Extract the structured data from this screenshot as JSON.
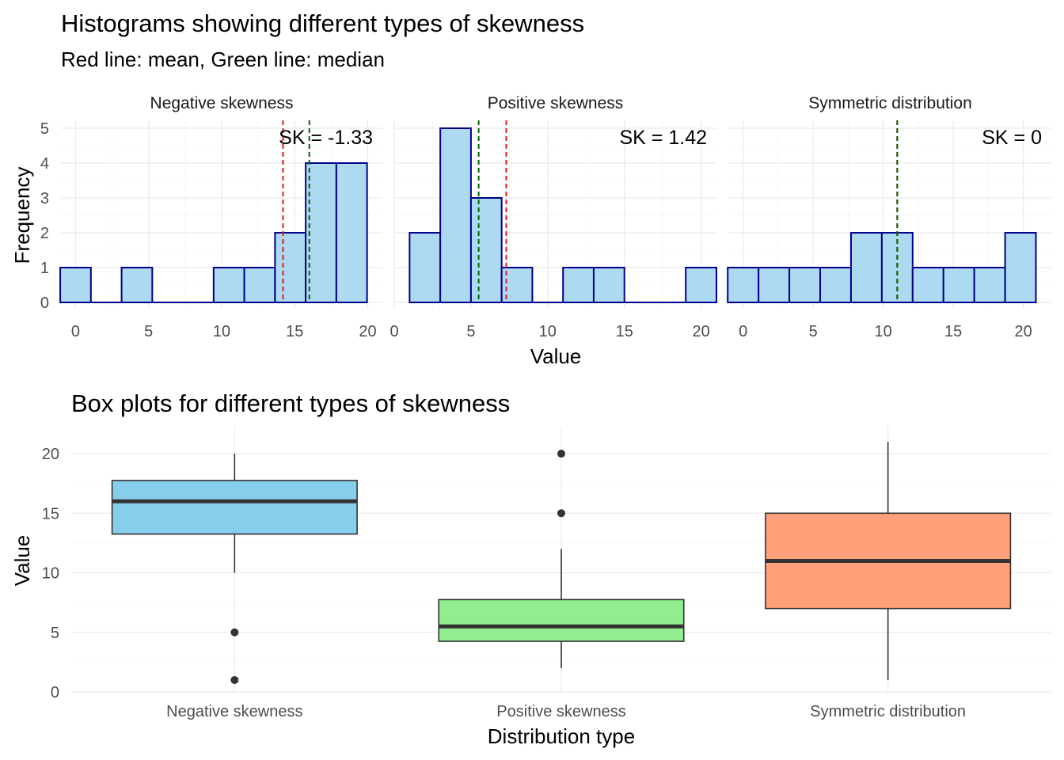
{
  "title": "Histograms showing different types of skewness",
  "subtitle": "Red line: mean, Green line: median",
  "chart_data": [
    {
      "type": "bar",
      "subtype": "histogram-facets",
      "xlabel": "Value",
      "ylabel": "Frequency",
      "ylim": [
        0,
        5
      ],
      "y_ticks": [
        0,
        1,
        2,
        3,
        4,
        5
      ],
      "bar_fill": "#ADDAF0",
      "bar_stroke": "#00008B",
      "mean_color": "#E41A1C",
      "median_color": "#006400",
      "grid": true,
      "panels": [
        {
          "strip": "Negative skewness",
          "annotation": "SK = -1.33",
          "xlim": [
            -1,
            21
          ],
          "x_ticks": [
            0,
            5,
            10,
            15,
            20
          ],
          "bin_start": -1.05,
          "bin_width": 2.1,
          "counts": [
            1,
            0,
            1,
            0,
            0,
            1,
            1,
            2,
            4,
            4
          ],
          "mean": 14.2,
          "median": 16
        },
        {
          "strip": "Positive skewness",
          "annotation": "SK = 1.42",
          "xlim": [
            0,
            21
          ],
          "x_ticks": [
            0,
            5,
            10,
            15,
            20
          ],
          "bin_start": 1,
          "bin_width": 2,
          "counts": [
            2,
            5,
            3,
            1,
            0,
            1,
            1,
            0,
            0,
            1
          ],
          "mean": 7.3,
          "median": 5.5
        },
        {
          "strip": "Symmetric distribution",
          "annotation": "SK = 0",
          "xlim": [
            -1,
            22
          ],
          "x_ticks": [
            0,
            5,
            10,
            15,
            20
          ],
          "bin_start": -1.1,
          "bin_width": 2.2,
          "counts": [
            1,
            1,
            1,
            1,
            2,
            2,
            1,
            1,
            1,
            2
          ],
          "mean": 11,
          "median": 11
        }
      ]
    },
    {
      "type": "box",
      "title": "Box plots for different types of skewness",
      "xlabel": "Distribution type",
      "ylabel": "Value",
      "ylim": [
        0,
        21
      ],
      "y_ticks": [
        0,
        5,
        10,
        15,
        20
      ],
      "grid": true,
      "categories": [
        "Negative skewness",
        "Positive skewness",
        "Symmetric distribution"
      ],
      "boxes": [
        {
          "fill": "#87CEEB",
          "q1": 13.25,
          "median": 16,
          "q3": 17.75,
          "whisker_low": 10,
          "whisker_high": 20,
          "outliers": [
            5,
            1
          ]
        },
        {
          "fill": "#90EE90",
          "q1": 4.25,
          "median": 5.5,
          "q3": 7.75,
          "whisker_low": 2,
          "whisker_high": 12,
          "outliers": [
            15,
            20
          ]
        },
        {
          "fill": "#FFA07A",
          "q1": 7,
          "median": 11,
          "q3": 15,
          "whisker_low": 1,
          "whisker_high": 21,
          "outliers": []
        }
      ]
    }
  ]
}
